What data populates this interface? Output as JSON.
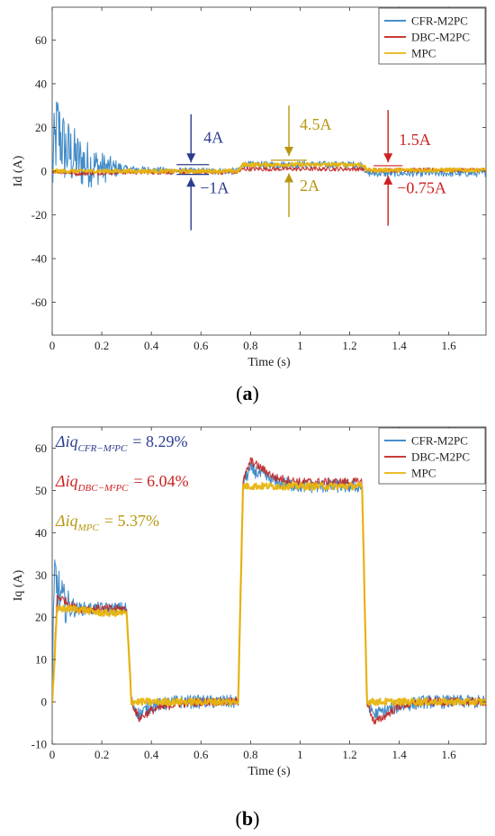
{
  "captions": {
    "a": "a",
    "b": "b"
  },
  "colors": {
    "cfr": "#2f7fc1",
    "dbc": "#c0211f",
    "mpc": "#e8b40f",
    "blue_annot": "#2b3d8f",
    "gold_annot": "#b8970f",
    "red_annot": "#cc2222"
  },
  "chart_data": [
    {
      "type": "line",
      "ylabel": "Id (A)",
      "xlabel": "Time (s)",
      "xlim": [
        0,
        1.75
      ],
      "ylim": [
        -75,
        75
      ],
      "x_ticks": [
        0,
        0.2,
        0.4,
        0.6,
        0.8,
        1,
        1.2,
        1.4,
        1.6
      ],
      "y_ticks": [
        -60,
        -40,
        -20,
        0,
        20,
        40,
        60
      ],
      "legend": {
        "position": "top-right",
        "entries": [
          "CFR-M2PC",
          "DBC-M2PC",
          "MPC"
        ]
      },
      "series": [
        {
          "name": "CFR-M2PC",
          "color": "#2f7fc1",
          "x": [
            0,
            0.02,
            0.05,
            0.1,
            0.15,
            0.2,
            0.3,
            0.4,
            0.5,
            0.6,
            0.75,
            0.77,
            0.9,
            1.0,
            1.1,
            1.25,
            1.27,
            1.4,
            1.5,
            1.6,
            1.75
          ],
          "y": [
            0,
            20,
            10,
            5,
            3,
            1.5,
            1,
            0.5,
            0,
            0,
            0,
            3,
            3,
            3,
            3,
            3,
            -1,
            -1,
            -1,
            -1,
            -1
          ]
        },
        {
          "name": "DBC-M2PC",
          "color": "#c0211f",
          "x": [
            0,
            0.1,
            0.3,
            0.5,
            0.75,
            0.77,
            1.0,
            1.25,
            1.27,
            1.5,
            1.75
          ],
          "y": [
            0,
            -1,
            -0.5,
            -0.5,
            -0.5,
            1,
            1,
            1,
            0.5,
            0.5,
            0.5
          ]
        },
        {
          "name": "MPC",
          "color": "#e8b40f",
          "x": [
            0,
            0.1,
            0.3,
            0.5,
            0.75,
            0.77,
            1.0,
            1.25,
            1.27,
            1.5,
            1.75
          ],
          "y": [
            0,
            0,
            0,
            0,
            0,
            3,
            3,
            3,
            0.5,
            0.5,
            0.5
          ]
        }
      ],
      "annotations": [
        {
          "text": "4A",
          "color": "#2b3d8f"
        },
        {
          "text": "−1A",
          "color": "#2b3d8f"
        },
        {
          "text": "4.5A",
          "color": "#b8970f"
        },
        {
          "text": "2A",
          "color": "#b8970f"
        },
        {
          "text": "1.5A",
          "color": "#cc2222"
        },
        {
          "text": "−0.75A",
          "color": "#cc2222"
        }
      ]
    },
    {
      "type": "line",
      "ylabel": "Iq (A)",
      "xlabel": "Time (s)",
      "xlim": [
        0,
        1.75
      ],
      "ylim": [
        -10,
        65
      ],
      "x_ticks": [
        0,
        0.2,
        0.4,
        0.6,
        0.8,
        1,
        1.2,
        1.4,
        1.6
      ],
      "y_ticks": [
        -10,
        0,
        10,
        20,
        30,
        40,
        50,
        60
      ],
      "legend": {
        "position": "top-right",
        "entries": [
          "CFR-M2PC",
          "DBC-M2PC",
          "MPC"
        ]
      },
      "series": [
        {
          "name": "CFR-M2PC",
          "color": "#2f7fc1",
          "x": [
            0,
            0.01,
            0.03,
            0.05,
            0.1,
            0.2,
            0.3,
            0.32,
            0.35,
            0.4,
            0.5,
            0.6,
            0.75,
            0.77,
            0.8,
            0.9,
            1.0,
            1.1,
            1.25,
            1.27,
            1.3,
            1.4,
            1.5,
            1.6,
            1.75
          ],
          "y": [
            0,
            30,
            25,
            23,
            22,
            22,
            22,
            0,
            -3,
            -1,
            0,
            0,
            0,
            52,
            55,
            52,
            51,
            51,
            51,
            0,
            -3,
            -1,
            0,
            0,
            0
          ]
        },
        {
          "name": "DBC-M2PC",
          "color": "#c0211f",
          "x": [
            0,
            0.02,
            0.05,
            0.1,
            0.2,
            0.3,
            0.32,
            0.35,
            0.4,
            0.5,
            0.6,
            0.75,
            0.77,
            0.8,
            0.9,
            1.0,
            1.1,
            1.25,
            1.27,
            1.3,
            1.35,
            1.4,
            1.5,
            1.6,
            1.75
          ],
          "y": [
            0,
            25,
            24,
            22,
            22,
            22,
            0,
            -4,
            -2,
            -0.5,
            0,
            0,
            52,
            57,
            53,
            52,
            52,
            52,
            0,
            -5,
            -3,
            -1,
            0,
            0,
            0
          ]
        },
        {
          "name": "MPC",
          "color": "#e8b40f",
          "x": [
            0,
            0.02,
            0.1,
            0.2,
            0.3,
            0.32,
            0.5,
            0.75,
            0.77,
            1.0,
            1.25,
            1.27,
            1.5,
            1.75
          ],
          "y": [
            0,
            22,
            22,
            21,
            21,
            0,
            0,
            0,
            51,
            51,
            51,
            0,
            0,
            0
          ]
        }
      ],
      "annotations": [
        {
          "text": "= 8.29%",
          "color": "#2b3d8f",
          "symbol": "Δiq",
          "sub": "CFR−M²PC"
        },
        {
          "text": "= 6.04%",
          "color": "#cc2222",
          "symbol": "Δiq",
          "sub": "DBC−M²PC"
        },
        {
          "text": "= 5.37%",
          "color": "#b8970f",
          "symbol": "Δiq",
          "sub": "MPC"
        }
      ]
    }
  ]
}
